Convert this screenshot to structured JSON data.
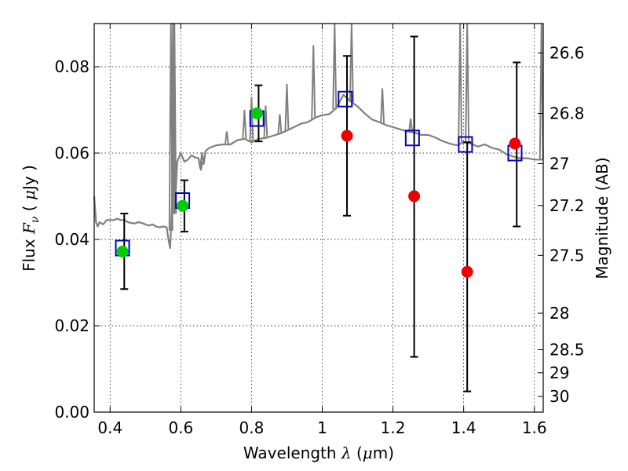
{
  "chart_data": {
    "type": "scatter",
    "xlabel": "Wavelength  λ (μm)",
    "xlabel_parts": {
      "text": "Wavelength  ",
      "symbol": "λ",
      "unit_open": " (",
      "unit_mu": "μ",
      "unit_close": "m)"
    },
    "ylabel": "Flux  Fν  ( μJy )",
    "ylabel_parts": {
      "text": "Flux  ",
      "symbol": "F",
      "subscript": "ν",
      "paren_open": "  ( ",
      "mu": "μ",
      "unit": "Jy )"
    },
    "y2label": "Magnitude (AB)",
    "xlim": [
      0.355,
      1.625
    ],
    "ylim": [
      0.0,
      0.09
    ],
    "x_ticks": [
      {
        "value": 0.4,
        "label": "0.4"
      },
      {
        "value": 0.6,
        "label": "0.6"
      },
      {
        "value": 0.8,
        "label": "0.8"
      },
      {
        "value": 1.0,
        "label": "1"
      },
      {
        "value": 1.2,
        "label": "1.2"
      },
      {
        "value": 1.4,
        "label": "1.4"
      },
      {
        "value": 1.6,
        "label": "1.6"
      }
    ],
    "y_ticks": [
      {
        "value": 0.0,
        "label": "0.00"
      },
      {
        "value": 0.02,
        "label": "0.02"
      },
      {
        "value": 0.04,
        "label": "0.04"
      },
      {
        "value": 0.06,
        "label": "0.06"
      },
      {
        "value": 0.08,
        "label": "0.08"
      }
    ],
    "magnitude_ticks": [
      {
        "value": 26.6,
        "label": "26.6"
      },
      {
        "value": 26.8,
        "label": "26.8"
      },
      {
        "value": 27.0,
        "label": "27"
      },
      {
        "value": 27.2,
        "label": "27.2"
      },
      {
        "value": 27.5,
        "label": "27.5"
      },
      {
        "value": 28.0,
        "label": "28"
      },
      {
        "value": 28.5,
        "label": "28.5"
      },
      {
        "value": 29.0,
        "label": "29"
      },
      {
        "value": 30.0,
        "label": "30"
      }
    ],
    "grid": true,
    "colors": {
      "template": "#808080",
      "model_box": "#0000cc",
      "detection": "#00cc00",
      "measurement": "#ee0000",
      "errorbar": "#000000"
    },
    "template_spectrum": {
      "x": [
        0.355,
        0.36,
        0.365,
        0.37,
        0.38,
        0.39,
        0.4,
        0.41,
        0.42,
        0.43,
        0.44,
        0.45,
        0.46,
        0.47,
        0.48,
        0.49,
        0.5,
        0.51,
        0.52,
        0.53,
        0.54,
        0.55,
        0.56,
        0.565,
        0.57,
        0.575,
        0.578,
        0.582,
        0.585,
        0.59,
        0.6,
        0.61,
        0.62,
        0.63,
        0.64,
        0.65,
        0.655,
        0.66,
        0.665,
        0.67,
        0.68,
        0.7,
        0.72,
        0.74,
        0.76,
        0.78,
        0.8,
        0.82,
        0.84,
        0.86,
        0.88,
        0.9,
        0.92,
        0.94,
        0.96,
        0.98,
        1.0,
        1.02,
        1.04,
        1.06,
        1.08,
        1.1,
        1.12,
        1.14,
        1.16,
        1.18,
        1.2,
        1.22,
        1.24,
        1.26,
        1.28,
        1.3,
        1.32,
        1.34,
        1.36,
        1.38,
        1.4,
        1.42,
        1.44,
        1.46,
        1.48,
        1.5,
        1.52,
        1.54,
        1.56,
        1.58,
        1.6,
        1.625
      ],
      "y": [
        0.05,
        0.044,
        0.043,
        0.044,
        0.0435,
        0.0445,
        0.0445,
        0.0445,
        0.0448,
        0.0445,
        0.0445,
        0.044,
        0.0438,
        0.0437,
        0.044,
        0.0438,
        0.0435,
        0.0432,
        0.0435,
        0.043,
        0.0428,
        0.043,
        0.0428,
        0.04,
        0.038,
        0.048,
        0.09,
        0.046,
        0.05,
        0.058,
        0.06,
        0.058,
        0.0585,
        0.0595,
        0.059,
        0.0588,
        0.0565,
        0.06,
        0.0575,
        0.0605,
        0.0612,
        0.0618,
        0.062,
        0.062,
        0.063,
        0.0633,
        0.0625,
        0.0633,
        0.0635,
        0.064,
        0.0645,
        0.0652,
        0.066,
        0.0668,
        0.0672,
        0.0682,
        0.0688,
        0.069,
        0.0705,
        0.0735,
        0.072,
        0.0708,
        0.0692,
        0.0678,
        0.0672,
        0.0665,
        0.066,
        0.0655,
        0.065,
        0.0648,
        0.0642,
        0.0642,
        0.0636,
        0.0628,
        0.0622,
        0.0618,
        0.0625,
        0.0622,
        0.0615,
        0.062,
        0.0612,
        0.0608,
        0.0598,
        0.0592,
        0.0588,
        0.0588,
        0.0585,
        0.0585
      ],
      "emission_spikes": [
        {
          "x": 0.572,
          "y": 0.09
        },
        {
          "x": 0.582,
          "y": 0.09
        },
        {
          "x": 0.657,
          "y": 0.056
        },
        {
          "x": 0.73,
          "y": 0.065
        },
        {
          "x": 0.78,
          "y": 0.07
        },
        {
          "x": 0.8,
          "y": 0.073
        },
        {
          "x": 0.84,
          "y": 0.071
        },
        {
          "x": 0.88,
          "y": 0.069
        },
        {
          "x": 0.9,
          "y": 0.076
        },
        {
          "x": 0.975,
          "y": 0.085
        },
        {
          "x": 1.035,
          "y": 0.09
        },
        {
          "x": 1.083,
          "y": 0.09
        },
        {
          "x": 1.17,
          "y": 0.075
        },
        {
          "x": 1.25,
          "y": 0.068
        },
        {
          "x": 1.39,
          "y": 0.09
        },
        {
          "x": 1.41,
          "y": 0.09
        },
        {
          "x": 1.62,
          "y": 0.09
        }
      ]
    },
    "series": [
      {
        "marker": "square",
        "x": [
          0.435,
          0.605,
          0.815,
          1.065,
          1.255,
          1.405,
          1.545
        ],
        "y": [
          0.038,
          0.049,
          0.068,
          0.0725,
          0.0635,
          0.062,
          0.06
        ]
      },
      {
        "marker": "circle-green",
        "x": [
          0.435,
          0.605,
          0.815
        ],
        "y": [
          0.0372,
          0.0478,
          0.0692
        ]
      },
      {
        "marker": "circle-red",
        "x": [
          1.07,
          1.26,
          1.41,
          1.545
        ],
        "y": [
          0.064,
          0.05,
          0.0325,
          0.0622
        ]
      }
    ],
    "errorbars": [
      {
        "x": 0.44,
        "ylo": 0.0285,
        "yhi": 0.046
      },
      {
        "x": 0.61,
        "ylo": 0.0418,
        "yhi": 0.0537
      },
      {
        "x": 0.82,
        "ylo": 0.0627,
        "yhi": 0.0757
      },
      {
        "x": 1.07,
        "ylo": 0.0455,
        "yhi": 0.0825
      },
      {
        "x": 1.26,
        "ylo": 0.0128,
        "yhi": 0.087
      },
      {
        "x": 1.41,
        "ylo": 0.0048,
        "yhi": 0.0625
      },
      {
        "x": 1.55,
        "ylo": 0.043,
        "yhi": 0.081
      }
    ]
  }
}
